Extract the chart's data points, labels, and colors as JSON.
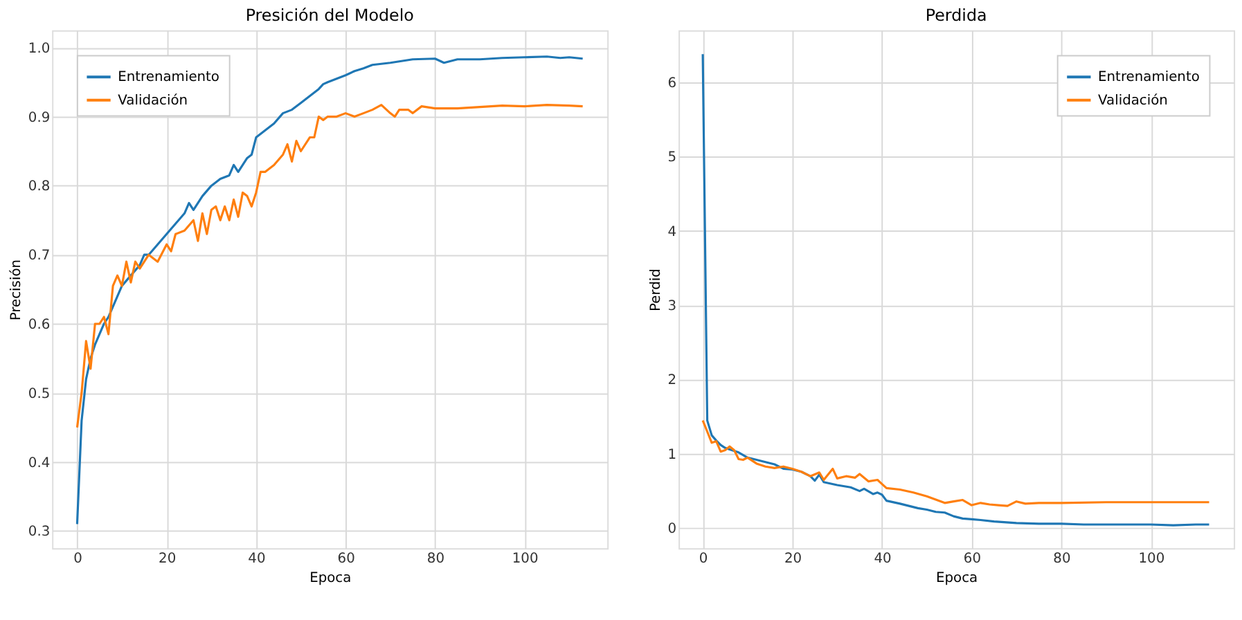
{
  "chart_data": [
    {
      "type": "line",
      "title": "Presición del Modelo",
      "xlabel": "Epoca",
      "ylabel": "Precisión",
      "xlim": [
        -5.6,
        118.5
      ],
      "ylim": [
        0.275,
        1.025
      ],
      "xticks": [
        0,
        20,
        40,
        60,
        80,
        100
      ],
      "yticks": [
        0.3,
        0.4,
        0.5,
        0.6,
        0.7,
        0.8,
        0.9,
        {
          "value": 1,
          "label": "1.0"
        }
      ],
      "grid": true,
      "legend": "top left",
      "line_style": "solid",
      "marker": "none",
      "series": [
        {
          "name": "Entrenamiento",
          "color": "#1f77b4",
          "x": [
            0,
            1,
            2,
            3,
            4,
            5,
            6,
            7,
            8,
            9,
            10,
            12,
            14,
            15,
            16,
            18,
            20,
            22,
            24,
            25,
            26,
            28,
            30,
            32,
            34,
            35,
            36,
            38,
            39,
            40,
            42,
            44,
            46,
            48,
            50,
            52,
            54,
            55,
            56,
            58,
            60,
            62,
            64,
            66,
            70,
            75,
            80,
            82,
            85,
            90,
            95,
            100,
            105,
            108,
            110,
            113
          ],
          "values": [
            0.31,
            0.46,
            0.52,
            0.55,
            0.57,
            0.585,
            0.6,
            0.61,
            0.625,
            0.64,
            0.655,
            0.67,
            0.685,
            0.7,
            0.7,
            0.715,
            0.73,
            0.745,
            0.76,
            0.775,
            0.765,
            0.785,
            0.8,
            0.81,
            0.815,
            0.83,
            0.82,
            0.84,
            0.845,
            0.87,
            0.88,
            0.89,
            0.905,
            0.91,
            0.92,
            0.93,
            0.94,
            0.947,
            0.95,
            0.955,
            0.96,
            0.966,
            0.97,
            0.975,
            0.978,
            0.983,
            0.984,
            0.978,
            0.983,
            0.983,
            0.985,
            0.986,
            0.987,
            0.985,
            0.986,
            0.984
          ]
        },
        {
          "name": "Validación",
          "color": "#ff7f0e",
          "x": [
            0,
            1,
            2,
            3,
            4,
            5,
            6,
            7,
            8,
            9,
            10,
            11,
            12,
            13,
            14,
            16,
            18,
            20,
            21,
            22,
            24,
            26,
            27,
            28,
            29,
            30,
            31,
            32,
            33,
            34,
            35,
            36,
            37,
            38,
            39,
            40,
            41,
            42,
            44,
            46,
            47,
            48,
            49,
            50,
            52,
            53,
            54,
            55,
            56,
            58,
            60,
            62,
            64,
            66,
            68,
            70,
            71,
            72,
            74,
            75,
            77,
            80,
            85,
            90,
            95,
            100,
            105,
            110,
            113
          ],
          "values": [
            0.45,
            0.5,
            0.575,
            0.535,
            0.6,
            0.6,
            0.61,
            0.585,
            0.655,
            0.67,
            0.655,
            0.69,
            0.66,
            0.69,
            0.68,
            0.7,
            0.69,
            0.715,
            0.705,
            0.73,
            0.735,
            0.75,
            0.72,
            0.76,
            0.73,
            0.765,
            0.77,
            0.75,
            0.77,
            0.75,
            0.78,
            0.755,
            0.79,
            0.785,
            0.77,
            0.79,
            0.82,
            0.82,
            0.83,
            0.845,
            0.86,
            0.835,
            0.865,
            0.85,
            0.87,
            0.87,
            0.9,
            0.895,
            0.9,
            0.9,
            0.905,
            0.9,
            0.905,
            0.91,
            0.917,
            0.905,
            0.9,
            0.91,
            0.91,
            0.905,
            0.915,
            0.912,
            0.912,
            0.914,
            0.916,
            0.915,
            0.917,
            0.916,
            0.915
          ]
        }
      ]
    },
    {
      "type": "line",
      "title": "Perdida",
      "xlabel": "Epoca",
      "ylabel": "Perdid",
      "xlim": [
        -5.4,
        118.5
      ],
      "ylim": [
        -0.27,
        6.7
      ],
      "xticks": [
        0,
        20,
        40,
        60,
        80,
        100
      ],
      "yticks": [
        0,
        1,
        2,
        3,
        4,
        5,
        6
      ],
      "grid": true,
      "legend": "top right",
      "line_style": "solid",
      "marker": "none",
      "series": [
        {
          "name": "Entrenamiento",
          "color": "#1f77b4",
          "x": [
            0,
            1,
            2,
            3,
            4,
            5,
            6,
            8,
            10,
            12,
            14,
            16,
            18,
            20,
            22,
            24,
            25,
            26,
            27,
            30,
            33,
            35,
            36,
            38,
            39,
            40,
            41,
            44,
            46,
            48,
            50,
            52,
            54,
            56,
            58,
            60,
            62,
            65,
            70,
            75,
            80,
            85,
            90,
            95,
            100,
            105,
            110,
            113
          ],
          "values": [
            6.38,
            1.45,
            1.25,
            1.18,
            1.12,
            1.08,
            1.06,
            1.02,
            0.95,
            0.92,
            0.89,
            0.86,
            0.8,
            0.79,
            0.76,
            0.7,
            0.64,
            0.72,
            0.62,
            0.58,
            0.55,
            0.5,
            0.53,
            0.46,
            0.48,
            0.45,
            0.37,
            0.33,
            0.3,
            0.27,
            0.25,
            0.22,
            0.21,
            0.16,
            0.13,
            0.12,
            0.11,
            0.09,
            0.07,
            0.06,
            0.06,
            0.05,
            0.05,
            0.05,
            0.05,
            0.04,
            0.05,
            0.05
          ]
        },
        {
          "name": "Validación",
          "color": "#ff7f0e",
          "x": [
            0,
            1,
            2,
            3,
            4,
            5,
            6,
            7,
            8,
            9,
            10,
            12,
            14,
            16,
            18,
            20,
            22,
            24,
            26,
            27,
            29,
            30,
            32,
            34,
            35,
            37,
            39,
            41,
            44,
            47,
            50,
            54,
            56,
            58,
            60,
            62,
            64,
            66,
            68,
            70,
            72,
            75,
            80,
            90,
            100,
            113
          ],
          "values": [
            1.45,
            1.3,
            1.15,
            1.17,
            1.03,
            1.05,
            1.1,
            1.05,
            0.93,
            0.92,
            0.95,
            0.87,
            0.83,
            0.81,
            0.83,
            0.8,
            0.76,
            0.7,
            0.75,
            0.65,
            0.8,
            0.67,
            0.7,
            0.68,
            0.73,
            0.63,
            0.65,
            0.54,
            0.52,
            0.48,
            0.43,
            0.34,
            0.36,
            0.38,
            0.31,
            0.34,
            0.32,
            0.31,
            0.3,
            0.36,
            0.33,
            0.34,
            0.34,
            0.35,
            0.35,
            0.35
          ]
        }
      ]
    }
  ]
}
